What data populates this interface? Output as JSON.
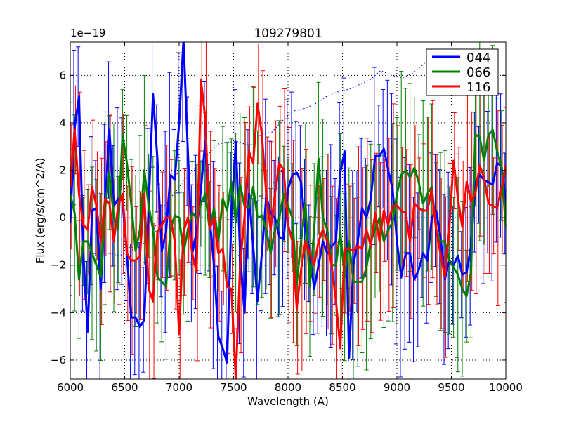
{
  "chart_data": {
    "type": "line",
    "title": "109279801",
    "xlabel": "Wavelength (A)",
    "ylabel": "Flux (erg/s/cm^2/A)",
    "y_offset_label": "1e−19",
    "xlim": [
      6000,
      10000
    ],
    "ylim": [
      -6.8,
      7.4
    ],
    "grid": true,
    "legend_position": "top-right",
    "x_ticks": [
      6000,
      6500,
      7000,
      7500,
      8000,
      8500,
      9000,
      9500,
      10000
    ],
    "x_tick_labels": [
      "6000",
      "6500",
      "7000",
      "7500",
      "8000",
      "8500",
      "9000",
      "9500",
      "10000"
    ],
    "y_ticks": [
      -6,
      -4,
      -2,
      0,
      2,
      4,
      6
    ],
    "y_tick_labels": [
      "−6",
      "−4",
      "−2",
      "0",
      "2",
      "4",
      "6"
    ],
    "x": [
      6000,
      6040,
      6080,
      6120,
      6160,
      6200,
      6240,
      6280,
      6320,
      6360,
      6400,
      6440,
      6480,
      6520,
      6560,
      6600,
      6640,
      6680,
      6720,
      6760,
      6800,
      6840,
      6880,
      6920,
      6960,
      7000,
      7040,
      7080,
      7120,
      7160,
      7200,
      7240,
      7280,
      7320,
      7360,
      7400,
      7440,
      7480,
      7520,
      7560,
      7600,
      7640,
      7680,
      7720,
      7760,
      7800,
      7840,
      7880,
      7920,
      7960,
      8000,
      8040,
      8080,
      8120,
      8160,
      8200,
      8240,
      8280,
      8320,
      8360,
      8400,
      8440,
      8480,
      8520,
      8560,
      8600,
      8640,
      8680,
      8720,
      8760,
      8800,
      8840,
      8880,
      8920,
      8960,
      9000,
      9040,
      9080,
      9120,
      9160,
      9200,
      9240,
      9280,
      9320,
      9360,
      9400,
      9440,
      9480,
      9520,
      9560,
      9600,
      9640,
      9680,
      9720,
      9760,
      9800,
      9840,
      9880,
      9920,
      9960,
      10000
    ],
    "series": [
      {
        "name": "044",
        "color": "#0000ff",
        "values": [
          -0.2,
          3.8,
          5.1,
          -1.5,
          -4.8,
          0.3,
          0.4,
          -3.0,
          0.6,
          3.7,
          0.5,
          0.8,
          0.7,
          -1.5,
          -4.2,
          -4.2,
          -4.6,
          -4.3,
          0.5,
          5.2,
          2.5,
          -1.4,
          -0.6,
          1.8,
          1.6,
          4.0,
          7.5,
          2.8,
          -1.5,
          -0.6,
          1.2,
          3.2,
          0.0,
          -2.0,
          -5.0,
          -5.5,
          -6.1,
          0.1,
          3.2,
          -1.5,
          -4.0,
          1.0,
          -1.2,
          -3.5,
          -1.5,
          0.9,
          0.2,
          0.0,
          -0.8,
          -0.9,
          1.2,
          1.8,
          1.9,
          1.5,
          -0.5,
          -1.5,
          -3.0,
          -2.0,
          -1.0,
          -1.5,
          -1.2,
          -1.0,
          1.9,
          2.8,
          -5.9,
          -2.0,
          -1.0,
          0.4,
          0.0,
          0.8,
          2.6,
          2.6,
          2.9,
          2.0,
          1.2,
          -1.0,
          -2.5,
          -1.5,
          -1.5,
          -2.6,
          -2.2,
          -1.5,
          -1.8,
          0.0,
          0.3,
          -0.8,
          -2.6,
          -1.8,
          -2.0,
          -1.6,
          -2.4,
          -2.3,
          -1.2,
          1.5,
          1.8,
          1.6,
          1.5,
          1.4,
          2.3,
          2.2,
          0.6
        ]
      },
      {
        "name": "066",
        "color": "#008000",
        "values": [
          1.0,
          0.2,
          -2.6,
          -1.0,
          -1.0,
          -1.5,
          -2.0,
          -2.5,
          0.4,
          1.9,
          0.0,
          -0.5,
          3.5,
          2.3,
          0.6,
          -1.4,
          -0.5,
          2.0,
          0.5,
          -0.5,
          -2.5,
          -2.7,
          -2.9,
          -0.5,
          0.1,
          0.0,
          -1.5,
          -0.5,
          0.2,
          0.0,
          0.6,
          1.0,
          -0.5,
          0.4,
          -1.0,
          0.8,
          0.3,
          1.5,
          -0.2,
          1.4,
          0.5,
          0.4,
          1.3,
          0.0,
          0.1,
          -0.5,
          -1.5,
          -0.5,
          0.0,
          1.0,
          0.5,
          0.0,
          -2.8,
          -1.0,
          0.6,
          -2.9,
          -0.5,
          2.5,
          0.0,
          -0.5,
          -2.0,
          -2.0,
          -0.6,
          -2.5,
          -1.0,
          -2.7,
          -2.7,
          -2.7,
          -2.1,
          -1.0,
          -0.5,
          0.0,
          -1.0,
          -0.5,
          -0.2,
          1.0,
          1.8,
          2.0,
          1.7,
          2.1,
          1.5,
          0.6,
          1.0,
          1.3,
          -0.5,
          -1.0,
          -1.0,
          -1.8,
          -2.1,
          -2.4,
          -3.0,
          -3.3,
          -2.3,
          3.5,
          3.4,
          2.4,
          3.5,
          3.7,
          2.8,
          2.2,
          -0.4
        ]
      },
      {
        "name": "116",
        "color": "#ff0000",
        "values": [
          1.3,
          3.7,
          1.0,
          -0.3,
          -0.5,
          1.3,
          0.5,
          -1.0,
          0.8,
          0.6,
          -1.0,
          0.5,
          1.0,
          -1.5,
          -1.8,
          -1.8,
          -1.6,
          1.0,
          -3.0,
          -3.5,
          -0.6,
          -0.3,
          0.0,
          0.0,
          -1.0,
          -4.9,
          -0.6,
          0.0,
          -1.5,
          -2.3,
          5.8,
          4.2,
          -0.5,
          0.0,
          -1.5,
          -1.3,
          -2.9,
          -3.0,
          -6.8,
          -2.0,
          0.0,
          2.8,
          2.3,
          4.8,
          3.5,
          1.0,
          -0.5,
          1.0,
          2.3,
          2.0,
          -0.3,
          -1.0,
          -3.8,
          -2.2,
          -1.0,
          -1.5,
          -2.0,
          -1.0,
          -0.5,
          -1.0,
          -2.0,
          -3.5,
          -5.5,
          -1.3,
          -1.3,
          -1.4,
          -1.2,
          -1.3,
          -0.5,
          -1.2,
          0.2,
          -1.0,
          0.3,
          -0.3,
          0.5,
          0.5,
          0.3,
          0.2,
          -1.0,
          0.6,
          0.4,
          0.3,
          0.3,
          1.2,
          -0.5,
          -1.5,
          -2.5,
          -0.5,
          2.4,
          0.8,
          -0.4,
          1.5,
          0.7,
          1.0,
          2.2,
          1.7,
          0.6,
          0.5,
          0.4,
          1.2,
          2.2
        ]
      }
    ],
    "reference_line": {
      "name": "dotted-reference",
      "color": "#0000ff",
      "x": [
        6350,
        6450,
        6550,
        6650,
        6750,
        6850,
        6950,
        7050,
        7150,
        7250,
        7350,
        7450,
        7550,
        7650,
        7750,
        7850,
        7950,
        8050,
        8150,
        8250,
        8350,
        8450,
        8550,
        8650,
        8750,
        8850,
        8950,
        9050,
        9150,
        9250,
        9350,
        9450
      ],
      "values": [
        -1.5,
        -1.6,
        -1.4,
        -1.2,
        -0.7,
        0.4,
        1.0,
        1.6,
        2.1,
        2.6,
        3.1,
        3.2,
        3.2,
        3.0,
        3.5,
        3.6,
        4.1,
        4.5,
        4.6,
        4.8,
        5.1,
        5.3,
        5.4,
        5.6,
        5.8,
        6.2,
        6.0,
        5.9,
        6.1,
        6.5,
        7.1,
        7.6
      ]
    }
  }
}
